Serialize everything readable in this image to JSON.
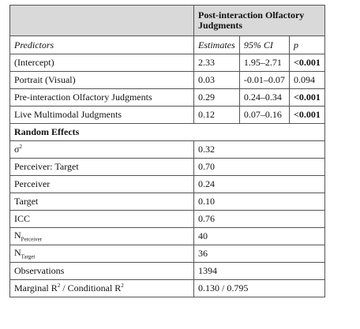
{
  "header": {
    "title": "Post-interaction Olfactory Judgments"
  },
  "table": {
    "columns": [
      "Predictors",
      "Estimates",
      "95% CI",
      "p"
    ],
    "rows": [
      [
        "(Intercept)",
        "2.33",
        "1.95–2.71",
        "<0.001"
      ],
      [
        "Portrait (Visual)",
        "0.03",
        "-0.01–0.07",
        "0.094"
      ],
      [
        "Pre-interaction Olfactory Judgments",
        "0.29",
        "0.24–0.34",
        "<0.001"
      ],
      [
        "Live Multimodal Judgments",
        "0.12",
        "0.07–0.16",
        "<0.001"
      ]
    ],
    "bold_p": [
      true,
      false,
      true,
      true
    ],
    "random_effects_title": "Random Effects",
    "random_effects": [
      {
        "label": [
          {
            "text": "σ"
          },
          {
            "sup": "2"
          }
        ],
        "value": "0.32"
      },
      {
        "label": [
          {
            "text": "Perceiver: Target"
          }
        ],
        "value": "0.70"
      },
      {
        "label": [
          {
            "text": "Perceiver"
          }
        ],
        "value": "0.24"
      },
      {
        "label": [
          {
            "text": "Target"
          }
        ],
        "value": "0.10"
      },
      {
        "label": [
          {
            "text": "ICC"
          }
        ],
        "value": "0.76"
      },
      {
        "label": [
          {
            "text": "N"
          },
          {
            "sub": "Perceiver"
          }
        ],
        "value": "40"
      },
      {
        "label": [
          {
            "text": "N"
          },
          {
            "sub": "Target"
          }
        ],
        "value": "36"
      },
      {
        "label": [
          {
            "text": "Observations"
          }
        ],
        "value": "1394"
      },
      {
        "label": [
          {
            "text": "Marginal R"
          },
          {
            "sup": "2"
          },
          {
            "text": " / Conditional R"
          },
          {
            "sup": "2"
          }
        ],
        "value": "0.130 / 0.795"
      }
    ]
  }
}
